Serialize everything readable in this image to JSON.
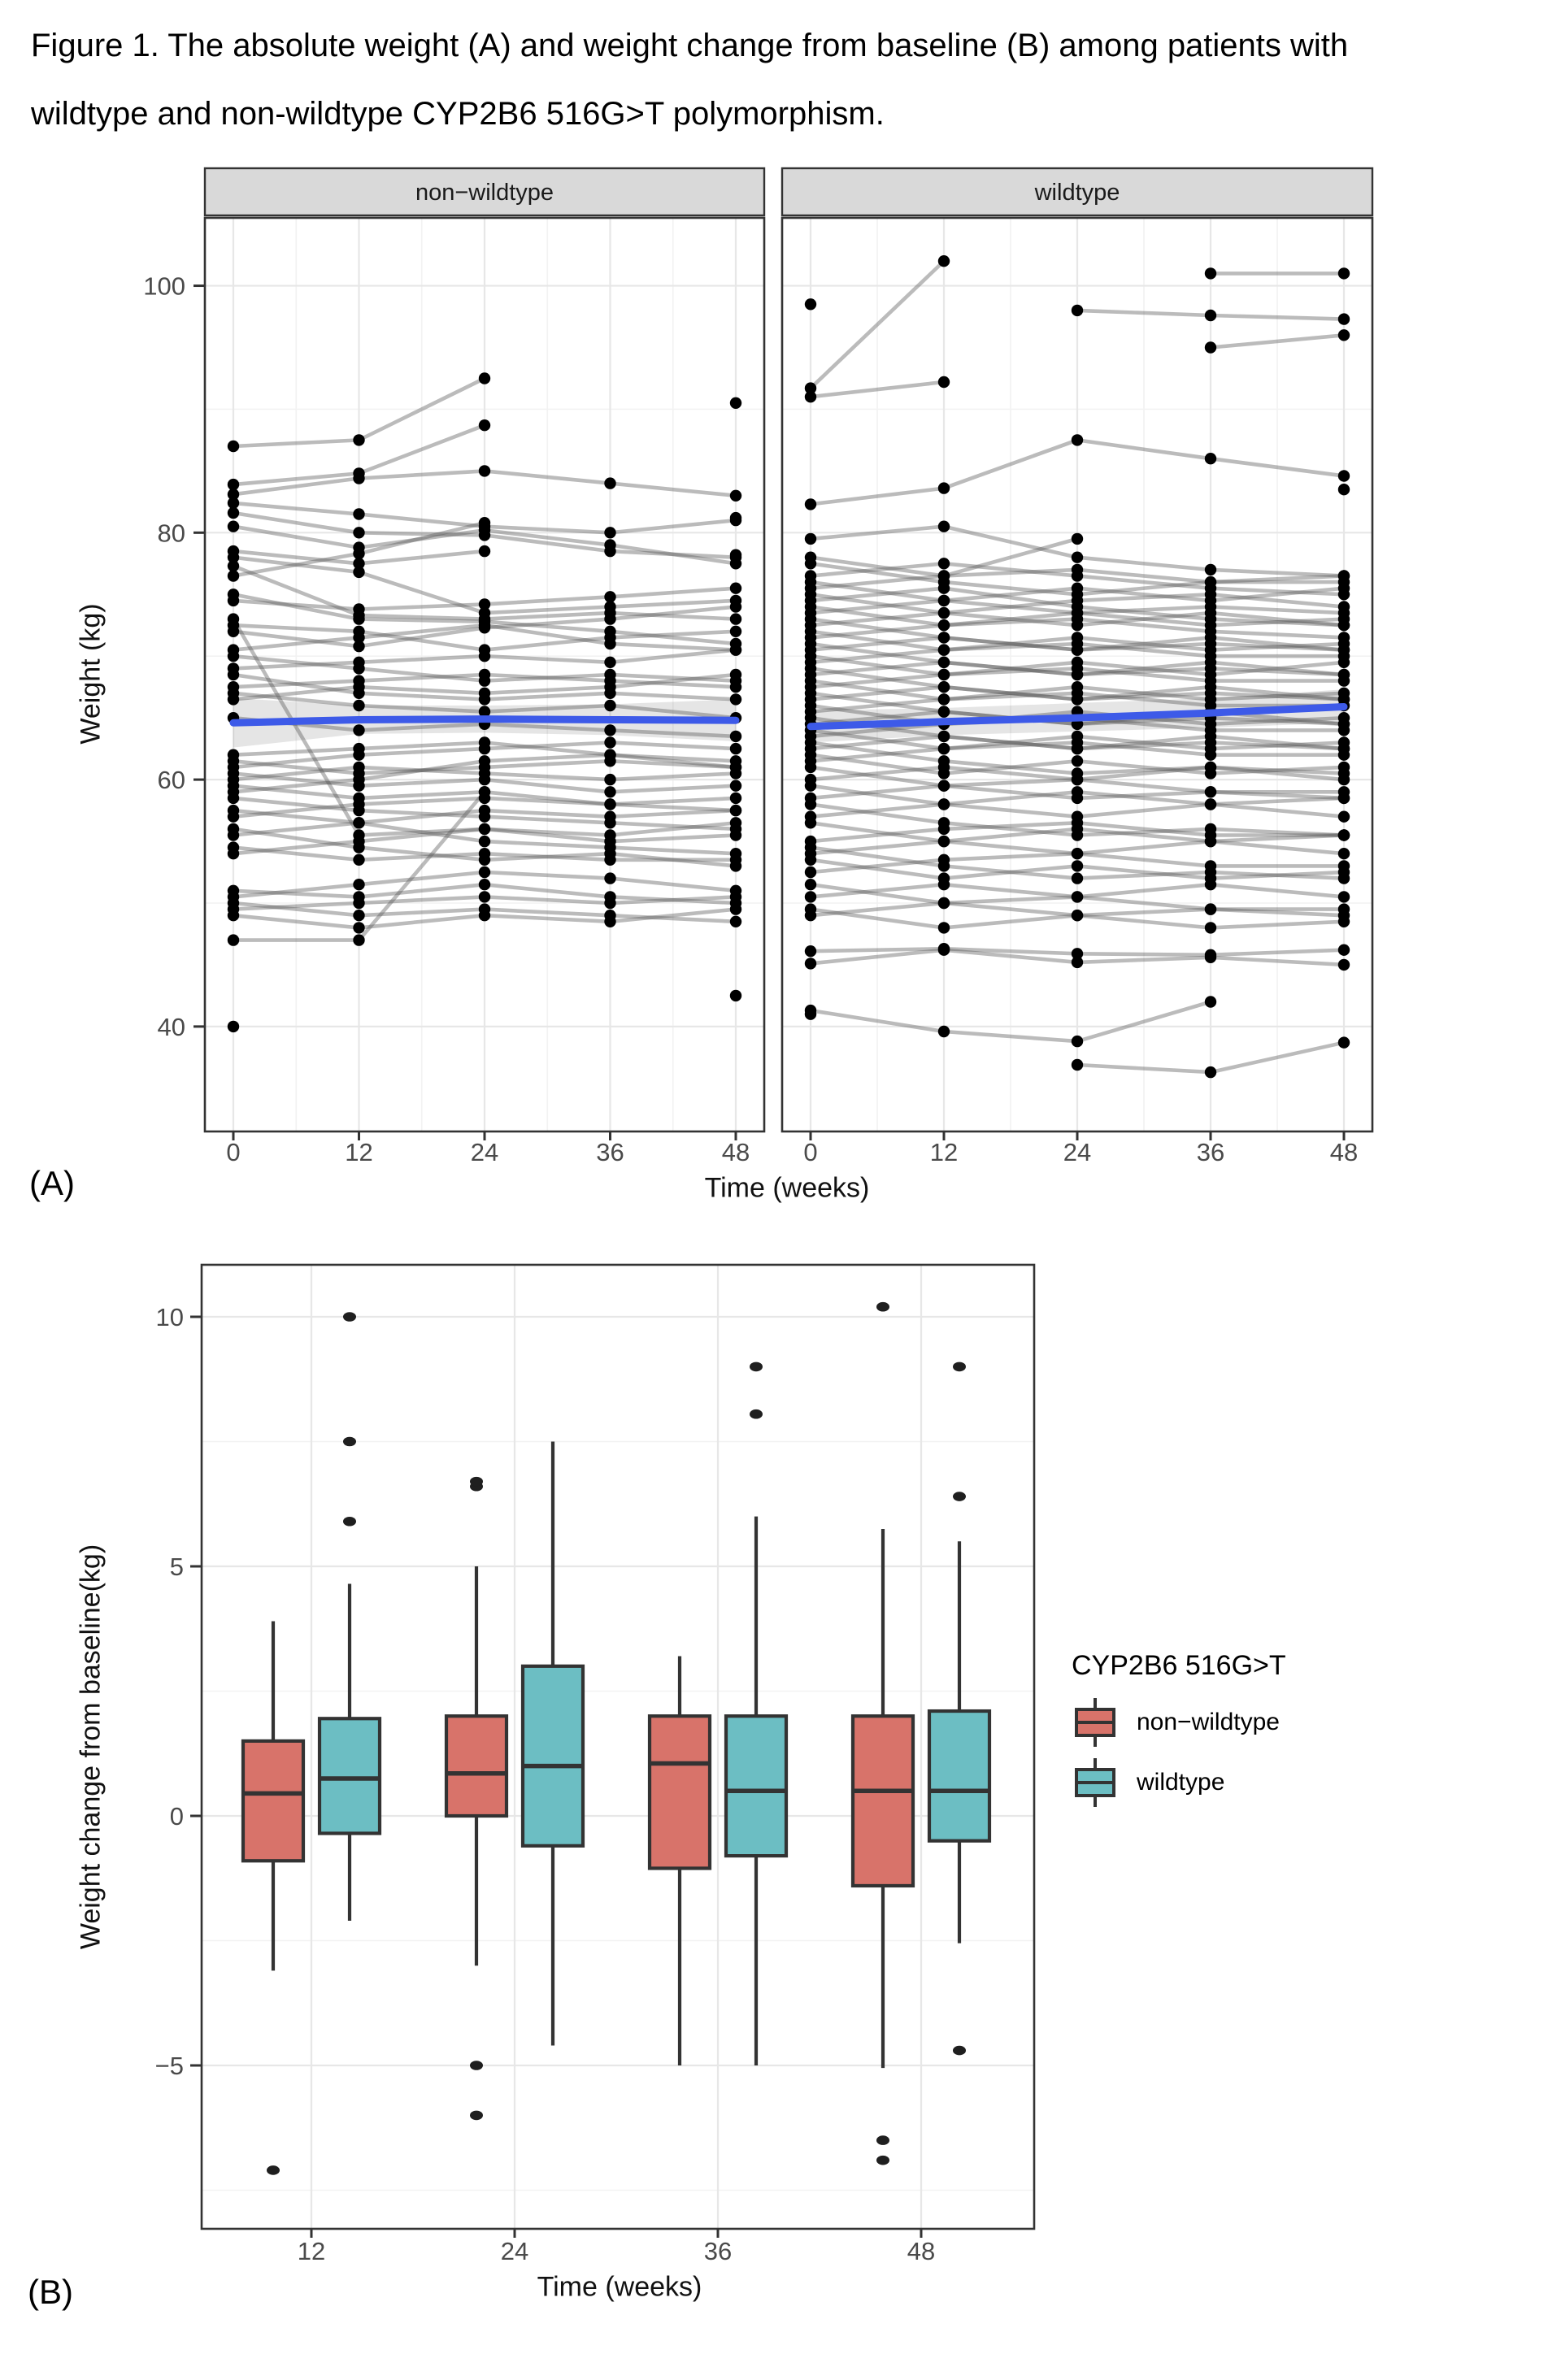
{
  "caption": {
    "line1": "Figure 1. The absolute weight (A) and weight change from baseline (B) among patients with",
    "line2": "wildtype and non-wildtype CYP2B6 516G>T polymorphism."
  },
  "labels": {
    "a": "(A)",
    "b": "(B)"
  },
  "axes": {
    "a_y_title": "Weight (kg)",
    "a_x_title": "Time (weeks)",
    "b_y_title": "Weight change from baseline(kg)",
    "b_x_title": "Time (weeks)"
  },
  "legend": {
    "title": "CYP2B6 516G>T",
    "items": [
      {
        "label": "non−wildtype",
        "color": "#D8736A"
      },
      {
        "label": "wildtype",
        "color": "#6CBEC3"
      }
    ]
  },
  "colors": {
    "smooth_line": "#3D5AE8",
    "ribbon": "rgba(0,0,0,0.10)",
    "subject_line": "#565656",
    "point": "#000000",
    "panel_border": "#333333",
    "strip_fill": "#D9D9D9",
    "grid_major": "#E7E7E7",
    "grid_minor": "#F2F2F2",
    "tick_text": "#4A4A4A",
    "box_border": "#333333"
  },
  "chart_data": [
    {
      "type": "line",
      "id": "A",
      "title": "",
      "xlabel": "Time (weeks)",
      "ylabel": "Weight (kg)",
      "x": [
        0,
        12,
        24,
        36,
        48
      ],
      "x_ticks": [
        0,
        12,
        24,
        36,
        48
      ],
      "x_minor": [
        6,
        18,
        30,
        42
      ],
      "y_ticks": [
        40,
        60,
        80,
        100
      ],
      "y_minor": [
        50,
        70,
        90
      ],
      "ylim": [
        31.5,
        105.5
      ],
      "facets": [
        {
          "name": "non−wildtype",
          "mean": [
            64.6,
            64.85,
            64.9,
            64.85,
            64.8
          ],
          "upper": [
            66.6,
            66.0,
            66.0,
            66.1,
            66.5
          ],
          "lower": [
            62.6,
            63.7,
            63.8,
            63.6,
            63.1
          ],
          "subjects": [
            [
              87,
              87.5,
              92.5,
              null,
              90.5
            ],
            [
              83.9,
              84.8,
              88.7,
              null,
              null
            ],
            [
              83.1,
              84.4,
              85.0,
              84.0,
              83.0
            ],
            [
              82.4,
              81.5,
              80.5,
              80.0,
              81.0
            ],
            [
              81.6,
              80.0,
              79.8,
              78.5,
              78.0
            ],
            [
              80.5,
              78.8,
              80.2,
              79.0,
              77.5
            ],
            [
              78.5,
              77.5,
              78.5,
              null,
              78.2
            ],
            [
              78.0,
              76.8,
              73.5,
              74.0,
              74.5
            ],
            [
              77.3,
              73.3,
              73.0,
              73.5,
              73.0
            ],
            [
              76.5,
              78.3,
              80.8,
              null,
              81.2
            ],
            [
              75.0,
              73.0,
              72.8,
              72.0,
              71.0
            ],
            [
              74.5,
              73.8,
              74.2,
              74.8,
              75.5
            ],
            [
              73.0,
              55.5,
              56.0,
              55.0,
              55.5
            ],
            [
              72.5,
              72.0,
              70.5,
              71.5,
              72.0
            ],
            [
              72.0,
              70.8,
              72.3,
              73.0,
              74.0
            ],
            [
              70.5,
              71.5,
              72.5,
              71.0,
              70.5
            ],
            [
              70.0,
              69.0,
              68.0,
              68.5,
              68.0
            ],
            [
              69.0,
              69.5,
              70.0,
              69.5,
              70.5
            ],
            [
              68.5,
              67.0,
              66.5,
              67.0,
              66.5
            ],
            [
              67.5,
              68.0,
              68.5,
              68.0,
              67.5
            ],
            [
              67.0,
              66.0,
              65.5,
              66.0,
              65.0
            ],
            [
              66.5,
              67.5,
              67.0,
              67.5,
              68.5
            ],
            [
              65.0,
              64.0,
              64.5,
              64.0,
              63.5
            ],
            [
              62.0,
              62.5,
              63.0,
              62.0,
              61.5
            ],
            [
              61.5,
              60.5,
              61.0,
              61.5,
              61.0
            ],
            [
              61.0,
              62.0,
              62.5,
              63.0,
              62.5
            ],
            [
              60.5,
              59.5,
              60.0,
              59.0,
              59.5
            ],
            [
              60.0,
              61.0,
              60.5,
              60.0,
              60.5
            ],
            [
              59.5,
              58.5,
              59.0,
              58.0,
              57.5
            ],
            [
              59.0,
              60.0,
              61.5,
              62.0,
              61.0
            ],
            [
              58.5,
              57.5,
              57.0,
              56.5,
              56.0
            ],
            [
              57.5,
              56.5,
              57.5,
              57.0,
              57.5
            ],
            [
              57.0,
              58.0,
              58.5,
              58.0,
              58.5
            ],
            [
              56.0,
              54.5,
              53.5,
              54.0,
              53.0
            ],
            [
              55.5,
              56.5,
              55.0,
              54.5,
              54.0
            ],
            [
              54.5,
              53.5,
              54.0,
              53.5,
              53.5
            ],
            [
              54.0,
              55.0,
              56.0,
              55.5,
              56.5
            ],
            [
              51.0,
              50.5,
              51.5,
              50.5,
              50.0
            ],
            [
              50.5,
              51.5,
              52.5,
              52.0,
              51.0
            ],
            [
              50.0,
              49.0,
              49.5,
              49.0,
              48.5
            ],
            [
              49.5,
              50.0,
              50.5,
              50.0,
              50.5
            ],
            [
              49.0,
              48.0,
              49.0,
              48.5,
              49.5
            ],
            [
              47.0,
              47.0,
              59.0,
              null,
              null
            ],
            [
              40.0,
              null,
              null,
              null,
              42.5
            ]
          ]
        },
        {
          "name": "wildtype",
          "mean": [
            64.3,
            64.7,
            65.0,
            65.4,
            65.9
          ],
          "upper": [
            65.6,
            65.8,
            66.2,
            66.6,
            67.3
          ],
          "lower": [
            63.0,
            63.6,
            63.9,
            64.2,
            64.6
          ],
          "subjects": [
            [
              91.7,
              102.0,
              null,
              101.0,
              101.0
            ],
            [
              98.5,
              null,
              98.0,
              97.6,
              97.3
            ],
            [
              91.0,
              92.2,
              null,
              95.0,
              96.0
            ],
            [
              82.3,
              83.6,
              87.5,
              86.0,
              84.6
            ],
            [
              79.5,
              80.5,
              78.0,
              77.0,
              76.5
            ],
            [
              78.0,
              76.5,
              79.5,
              null,
              83.5
            ],
            [
              77.5,
              76.0,
              75.0,
              76.0,
              76.5
            ],
            [
              76.5,
              77.5,
              76.5,
              75.5,
              75.0
            ],
            [
              76.0,
              74.5,
              73.5,
              74.0,
              73.5
            ],
            [
              75.5,
              76.5,
              77.0,
              76.0,
              76.0
            ],
            [
              75.0,
              73.5,
              74.5,
              75.0,
              74.0
            ],
            [
              74.5,
              75.5,
              74.0,
              73.0,
              72.5
            ],
            [
              74.0,
              72.5,
              73.0,
              72.0,
              71.5
            ],
            [
              73.5,
              74.5,
              75.5,
              74.5,
              75.5
            ],
            [
              73.0,
              71.5,
              70.5,
              71.0,
              70.5
            ],
            [
              72.5,
              73.5,
              72.5,
              73.5,
              72.5
            ],
            [
              72.0,
              70.5,
              71.5,
              70.5,
              71.0
            ],
            [
              71.5,
              72.5,
              73.5,
              72.5,
              73.0
            ],
            [
              71.0,
              69.5,
              68.5,
              69.0,
              68.5
            ],
            [
              70.5,
              71.5,
              70.5,
              71.5,
              70.5
            ],
            [
              70.0,
              68.5,
              69.5,
              68.5,
              69.5
            ],
            [
              69.5,
              70.5,
              71.0,
              70.0,
              70.0
            ],
            [
              69.0,
              67.5,
              66.5,
              67.0,
              66.5
            ],
            [
              68.5,
              69.5,
              68.5,
              69.5,
              68.5
            ],
            [
              68.0,
              66.5,
              67.5,
              66.5,
              67.0
            ],
            [
              67.5,
              68.5,
              69.0,
              68.0,
              68.0
            ],
            [
              67.0,
              65.5,
              64.5,
              65.0,
              64.5
            ],
            [
              66.5,
              67.5,
              66.5,
              67.5,
              66.5
            ],
            [
              66.0,
              64.5,
              65.5,
              64.5,
              65.0
            ],
            [
              65.5,
              66.5,
              67.0,
              66.0,
              66.0
            ],
            [
              65.0,
              63.5,
              62.5,
              63.0,
              62.5
            ],
            [
              64.5,
              65.5,
              64.5,
              65.5,
              64.5
            ],
            [
              64.0,
              62.5,
              63.5,
              62.5,
              63.0
            ],
            [
              63.5,
              64.5,
              65.0,
              64.0,
              64.0
            ],
            [
              63.0,
              61.5,
              60.5,
              61.0,
              60.5
            ],
            [
              62.5,
              63.5,
              62.5,
              63.5,
              62.5
            ],
            [
              62.0,
              60.5,
              61.5,
              60.5,
              61.0
            ],
            [
              61.5,
              62.5,
              63.0,
              62.0,
              62.0
            ],
            [
              61.0,
              59.5,
              58.5,
              59.0,
              58.5
            ],
            [
              60.0,
              61.0,
              60.0,
              61.0,
              60.0
            ],
            [
              59.5,
              58.0,
              59.0,
              58.0,
              58.5
            ],
            [
              58.5,
              59.5,
              60.0,
              59.0,
              59.0
            ],
            [
              58.0,
              56.5,
              55.5,
              56.0,
              55.5
            ],
            [
              57.0,
              58.0,
              57.0,
              58.0,
              57.0
            ],
            [
              56.5,
              55.0,
              56.0,
              55.0,
              55.5
            ],
            [
              55.0,
              56.0,
              56.5,
              55.5,
              55.5
            ],
            [
              54.5,
              53.0,
              52.0,
              52.5,
              52.0
            ],
            [
              54.0,
              55.0,
              54.0,
              55.0,
              54.0
            ],
            [
              53.5,
              52.0,
              53.0,
              52.0,
              52.5
            ],
            [
              52.5,
              53.5,
              54.0,
              53.0,
              53.0
            ],
            [
              51.5,
              50.0,
              49.0,
              49.5,
              49.0
            ],
            [
              50.5,
              51.5,
              50.5,
              51.5,
              50.5
            ],
            [
              49.5,
              48.0,
              49.0,
              48.0,
              48.5
            ],
            [
              49.0,
              50.0,
              50.5,
              49.5,
              49.5
            ],
            [
              46.1,
              46.3,
              45.9,
              45.8,
              46.2
            ],
            [
              45.1,
              46.2,
              45.2,
              45.6,
              45.0
            ],
            [
              41.3,
              39.6,
              38.8,
              42.0,
              null
            ],
            [
              41.0,
              null,
              36.9,
              36.3,
              38.7
            ]
          ]
        }
      ]
    },
    {
      "type": "box",
      "id": "B",
      "title": "",
      "xlabel": "Time (weeks)",
      "ylabel": "Weight change from baseline(kg)",
      "categories": [
        12,
        24,
        36,
        48
      ],
      "y_ticks": [
        -5,
        0,
        5,
        10
      ],
      "y_minor": [
        -7.5,
        -2.5,
        2.5,
        7.5
      ],
      "ylim": [
        -8.5,
        10.9
      ],
      "groups": [
        {
          "week": 12,
          "boxes": [
            {
              "g": "non-wildtype",
              "low": -3.1,
              "q1": -0.9,
              "med": 0.45,
              "q3": 1.5,
              "high": 3.9,
              "out": [
                -7.1
              ]
            },
            {
              "g": "wildtype",
              "low": -2.1,
              "q1": -0.35,
              "med": 0.75,
              "q3": 1.95,
              "high": 4.65,
              "out": [
                5.9,
                7.5,
                10.0
              ]
            }
          ]
        },
        {
          "week": 24,
          "boxes": [
            {
              "g": "non-wildtype",
              "low": -3.0,
              "q1": 0.0,
              "med": 0.85,
              "q3": 2.0,
              "high": 5.0,
              "out": [
                6.6,
                6.7,
                -5.0,
                -6.0
              ]
            },
            {
              "g": "wildtype",
              "low": -4.6,
              "q1": -0.6,
              "med": 1.0,
              "q3": 3.0,
              "high": 7.5,
              "out": []
            }
          ]
        },
        {
          "week": 36,
          "boxes": [
            {
              "g": "non-wildtype",
              "low": -5.0,
              "q1": -1.05,
              "med": 1.05,
              "q3": 2.0,
              "high": 3.2,
              "out": []
            },
            {
              "g": "wildtype",
              "low": -5.0,
              "q1": -0.8,
              "med": 0.5,
              "q3": 2.0,
              "high": 6.0,
              "out": [
                8.05,
                9.0
              ]
            }
          ]
        },
        {
          "week": 48,
          "boxes": [
            {
              "g": "non-wildtype",
              "low": -5.05,
              "q1": -1.4,
              "med": 0.5,
              "q3": 2.0,
              "high": 5.75,
              "out": [
                10.2,
                -6.5,
                -6.9
              ]
            },
            {
              "g": "wildtype",
              "low": -2.55,
              "q1": -0.5,
              "med": 0.5,
              "q3": 2.1,
              "high": 5.5,
              "out": [
                9.0,
                6.4,
                -4.7
              ]
            }
          ]
        }
      ]
    }
  ]
}
